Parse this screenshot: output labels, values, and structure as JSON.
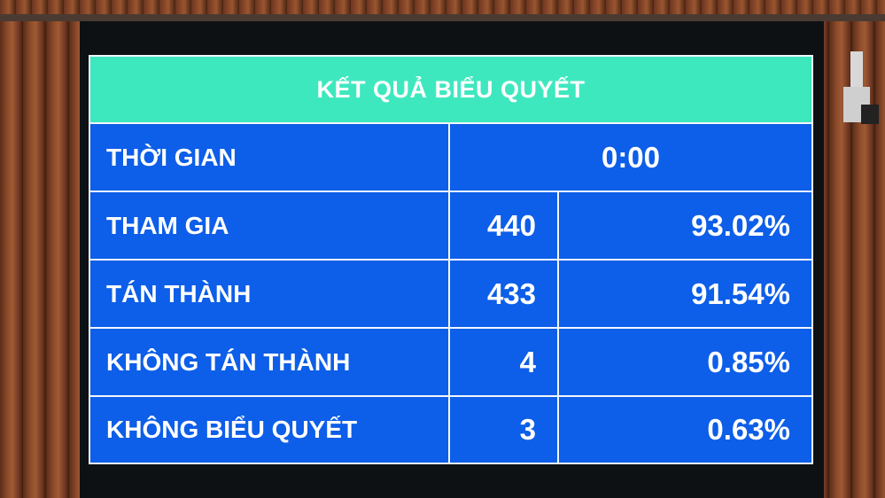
{
  "title": "KẾT QUẢ BIỂU QUYẾT",
  "time": {
    "label": "THỜI GIAN",
    "value": "0:00"
  },
  "rows": [
    {
      "label": "THAM GIA",
      "count": "440",
      "percent": "93.02%"
    },
    {
      "label": "TÁN THÀNH",
      "count": "433",
      "percent": "91.54%"
    },
    {
      "label": "KHÔNG TÁN THÀNH",
      "count": "4",
      "percent": "0.85%"
    },
    {
      "label": "KHÔNG BIỂU QUYẾT",
      "count": "3",
      "percent": "0.63%"
    }
  ],
  "colors": {
    "header": "#3ee8bf",
    "cell": "#0d5ee8",
    "wood": "#8a4a2a"
  }
}
